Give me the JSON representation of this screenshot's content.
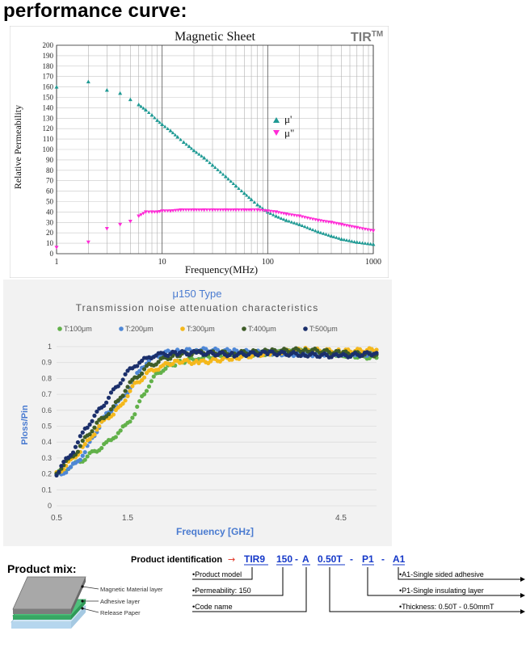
{
  "page_title": "performance curve:",
  "colors": {
    "teal": "#1f9a94",
    "magenta": "#ff2bd6",
    "green": "#62b14a",
    "blue": "#4e87d6",
    "yellow": "#f4b81c",
    "darkgreen": "#3e5c28",
    "navy": "#1b2f6b",
    "title_blue": "#4a7bd0",
    "red_arrow": "#e03020",
    "pid_blue": "#1538c8"
  },
  "chart_data": [
    {
      "type": "scatter",
      "title": "Magnetic Sheet",
      "brand": "TIR",
      "brand_tm": "TM",
      "xlabel": "Frequency(MHz)",
      "ylabel": "Relative Permeability",
      "xscale": "log",
      "xlim": [
        1,
        1000
      ],
      "ylim": [
        0,
        200
      ],
      "grid": true,
      "legend_position": "right",
      "x_ticks": [
        "1",
        "10",
        "100",
        "1000"
      ],
      "y_ticks": [
        "0",
        "10",
        "20",
        "30",
        "40",
        "50",
        "60",
        "70",
        "80",
        "90",
        "100",
        "110",
        "120",
        "130",
        "140",
        "150",
        "160",
        "170",
        "180",
        "190",
        "200"
      ],
      "series": [
        {
          "name": "μ'",
          "marker": "triangle-up",
          "color": "#1f9a94",
          "x": [
            1,
            2,
            3,
            4,
            5,
            6,
            7,
            8,
            9,
            10,
            12,
            14,
            16,
            18,
            20,
            25,
            30,
            40,
            50,
            60,
            70,
            80,
            100,
            120,
            150,
            200,
            300,
            400,
            500,
            700,
            1000
          ],
          "y": [
            160,
            165,
            157,
            154,
            148,
            143,
            138,
            133,
            128,
            124,
            118,
            112,
            107,
            103,
            99,
            92,
            85,
            74,
            65,
            58,
            52,
            47,
            40,
            36,
            32,
            28,
            21,
            17,
            14,
            11,
            9
          ]
        },
        {
          "name": "μ\"",
          "marker": "triangle-down",
          "color": "#ff2bd6",
          "x": [
            1,
            2,
            3,
            4,
            5,
            6,
            7,
            8,
            9,
            10,
            12,
            15,
            20,
            25,
            30,
            40,
            50,
            60,
            70,
            80,
            100,
            120,
            150,
            200,
            300,
            400,
            500,
            700,
            1000
          ],
          "y": [
            6,
            11,
            24,
            28,
            31,
            36,
            40,
            40,
            40,
            41,
            41,
            42,
            42,
            42,
            42,
            42,
            42,
            42,
            42,
            42,
            41,
            40,
            38,
            36,
            32,
            30,
            28,
            25,
            22
          ]
        }
      ]
    },
    {
      "type": "scatter",
      "title": "μ150 Type",
      "subtitle": "Transmission noise attenuation characteristics",
      "xlabel": "Frequency [GHz]",
      "ylabel": "Ploss/Pin",
      "xlim": [
        0.5,
        5.0
      ],
      "ylim": [
        0,
        1.0
      ],
      "legend_position": "top",
      "x_ticks": [
        "0.5",
        "1.5",
        "4.5"
      ],
      "y_ticks": [
        "0",
        "0.1",
        "0.2",
        "0.3",
        "0.4",
        "0.5",
        "0.6",
        "0.7",
        "0.8",
        "0.9",
        "1"
      ],
      "x_ticks_values": [
        0.5,
        1.5,
        4.5
      ],
      "series": [
        {
          "name": "T:100μm",
          "color": "#62b14a",
          "x": [
            0.5,
            0.6,
            0.7,
            0.8,
            0.9,
            1.0,
            1.1,
            1.2,
            1.3,
            1.4,
            1.5,
            1.6,
            1.7,
            1.8,
            1.9,
            2.0,
            2.2,
            2.5,
            3.0,
            3.5,
            4.0,
            4.5,
            5.0
          ],
          "y": [
            0.2,
            0.22,
            0.25,
            0.27,
            0.3,
            0.33,
            0.36,
            0.39,
            0.43,
            0.47,
            0.52,
            0.58,
            0.68,
            0.76,
            0.82,
            0.86,
            0.9,
            0.93,
            0.95,
            0.96,
            0.97,
            0.95,
            0.93
          ]
        },
        {
          "name": "T:200μm",
          "color": "#4e87d6",
          "x": [
            0.5,
            0.6,
            0.7,
            0.8,
            0.9,
            1.0,
            1.1,
            1.2,
            1.3,
            1.4,
            1.5,
            1.6,
            1.7,
            1.8,
            1.9,
            2.0,
            2.2,
            2.5,
            3.0,
            3.5,
            4.0,
            4.5,
            5.0
          ],
          "y": [
            0.19,
            0.21,
            0.24,
            0.28,
            0.34,
            0.42,
            0.5,
            0.57,
            0.62,
            0.66,
            0.72,
            0.8,
            0.87,
            0.91,
            0.94,
            0.96,
            0.97,
            0.98,
            0.97,
            0.96,
            0.95,
            0.96,
            0.95
          ]
        },
        {
          "name": "T:300μm",
          "color": "#f4b81c",
          "x": [
            0.5,
            0.6,
            0.7,
            0.8,
            0.9,
            1.0,
            1.1,
            1.2,
            1.3,
            1.4,
            1.5,
            1.6,
            1.7,
            1.8,
            1.9,
            2.0,
            2.2,
            2.5,
            3.0,
            3.5,
            4.0,
            4.5,
            5.0
          ],
          "y": [
            0.2,
            0.24,
            0.28,
            0.33,
            0.38,
            0.44,
            0.5,
            0.55,
            0.58,
            0.62,
            0.7,
            0.76,
            0.8,
            0.84,
            0.86,
            0.88,
            0.91,
            0.9,
            0.93,
            0.96,
            0.98,
            0.97,
            0.98
          ]
        },
        {
          "name": "T:400μm",
          "color": "#3e5c28",
          "x": [
            0.5,
            0.6,
            0.7,
            0.8,
            0.9,
            1.0,
            1.1,
            1.2,
            1.3,
            1.4,
            1.5,
            1.6,
            1.7,
            1.8,
            1.9,
            2.0,
            2.2,
            2.5,
            3.0,
            3.5,
            4.0,
            4.5,
            5.0
          ],
          "y": [
            0.2,
            0.26,
            0.3,
            0.35,
            0.42,
            0.48,
            0.53,
            0.57,
            0.62,
            0.68,
            0.75,
            0.8,
            0.84,
            0.88,
            0.9,
            0.92,
            0.95,
            0.96,
            0.96,
            0.97,
            0.98,
            0.96,
            0.95
          ]
        },
        {
          "name": "T:500μm",
          "color": "#1b2f6b",
          "x": [
            0.5,
            0.6,
            0.7,
            0.8,
            0.9,
            1.0,
            1.1,
            1.2,
            1.3,
            1.4,
            1.5,
            1.6,
            1.7,
            1.8,
            1.9,
            2.0,
            2.2,
            2.5,
            3.0,
            3.5,
            4.0,
            4.5,
            5.0
          ],
          "y": [
            0.2,
            0.27,
            0.32,
            0.4,
            0.48,
            0.54,
            0.6,
            0.66,
            0.72,
            0.78,
            0.84,
            0.88,
            0.91,
            0.93,
            0.95,
            0.95,
            0.96,
            0.96,
            0.95,
            0.96,
            0.95,
            0.94,
            0.96
          ]
        }
      ]
    }
  ],
  "product_mix": {
    "label": "Product mix:",
    "layers": [
      "Magnetic Material layer",
      "Adhesive layer",
      "Release Paper"
    ]
  },
  "product_id": {
    "label": "Product identification",
    "arrow": "→",
    "codes": [
      "TIR9",
      "150",
      "-",
      "A",
      "0.50T",
      "-",
      "P1",
      "-",
      "A1"
    ],
    "left_notes": [
      "•Product model",
      "•Permeability: 150",
      "•Code name"
    ],
    "right_notes": [
      "•A1-Single sided adhesive",
      "•P1-Single insulating layer",
      "•Thickness: 0.50T - 0.50mmT"
    ]
  }
}
